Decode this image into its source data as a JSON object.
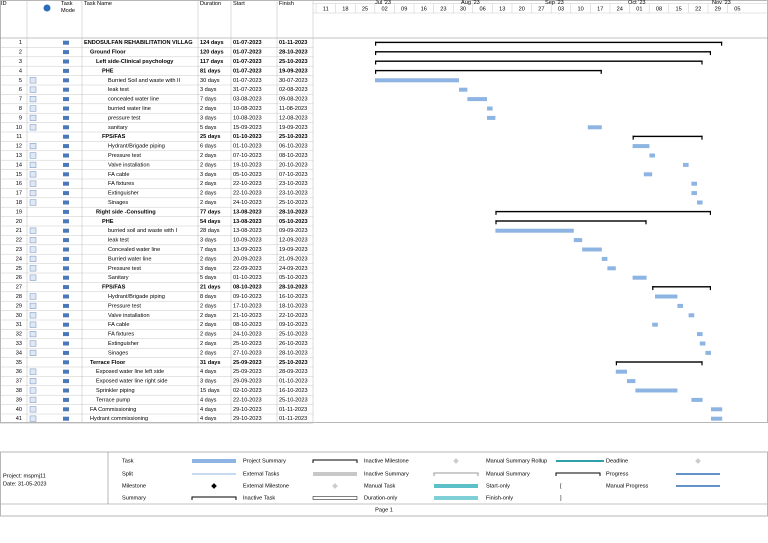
{
  "header": {
    "columns": [
      "ID",
      "Task\nMode",
      "Task Name",
      "Duration",
      "Start",
      "Finish"
    ]
  },
  "timeline": {
    "months": [
      "Jul '23",
      "Aug '23",
      "Sep '23",
      "Oct '23",
      "Nov '23"
    ],
    "weeks": [
      "11",
      "18",
      "25",
      "02",
      "09",
      "16",
      "23",
      "30",
      "06",
      "13",
      "20",
      "27",
      "03",
      "10",
      "17",
      "24",
      "01",
      "08",
      "15",
      "22",
      "29",
      "05"
    ]
  },
  "rows": [
    {
      "id": "1",
      "name": "ENDOSULFAN REHABILITATION VILLAG",
      "duration": "124 days",
      "start": "01-07-2023",
      "finish": "01-11-2023",
      "level": 0,
      "summary": true
    },
    {
      "id": "2",
      "name": "Ground Floor",
      "duration": "120 days",
      "start": "01-07-2023",
      "finish": "28-10-2023",
      "level": 1,
      "summary": true
    },
    {
      "id": "3",
      "name": "Left side-Clinical psychology",
      "duration": "117 days",
      "start": "01-07-2023",
      "finish": "25-10-2023",
      "level": 2,
      "summary": true
    },
    {
      "id": "4",
      "name": "PHE",
      "duration": "81 days",
      "start": "01-07-2023",
      "finish": "19-09-2023",
      "level": 3,
      "summary": true
    },
    {
      "id": "5",
      "name": "Burried Soil and waste with II",
      "duration": "30 days",
      "start": "01-07-2023",
      "finish": "30-07-2023",
      "level": 4,
      "summary": false
    },
    {
      "id": "6",
      "name": "leak test",
      "duration": "3 days",
      "start": "31-07-2023",
      "finish": "02-08-2023",
      "level": 4,
      "summary": false
    },
    {
      "id": "7",
      "name": "concealed water line",
      "duration": "7 days",
      "start": "03-08-2023",
      "finish": "09-08-2023",
      "level": 4,
      "summary": false
    },
    {
      "id": "8",
      "name": "burried water line",
      "duration": "2 days",
      "start": "10-08-2023",
      "finish": "11-08-2023",
      "level": 4,
      "summary": false
    },
    {
      "id": "9",
      "name": "pressure test",
      "duration": "3 days",
      "start": "10-08-2023",
      "finish": "12-08-2023",
      "level": 4,
      "summary": false
    },
    {
      "id": "10",
      "name": "sanitary",
      "duration": "5 days",
      "start": "15-09-2023",
      "finish": "19-09-2023",
      "level": 4,
      "summary": false
    },
    {
      "id": "11",
      "name": "FPS/FAS",
      "duration": "25 days",
      "start": "01-10-2023",
      "finish": "25-10-2023",
      "level": 3,
      "summary": true
    },
    {
      "id": "12",
      "name": "Hydrant/Brigade piping",
      "duration": "6 days",
      "start": "01-10-2023",
      "finish": "06-10-2023",
      "level": 4,
      "summary": false
    },
    {
      "id": "13",
      "name": "Pressure test",
      "duration": "2 days",
      "start": "07-10-2023",
      "finish": "08-10-2023",
      "level": 4,
      "summary": false
    },
    {
      "id": "14",
      "name": "Valve installation",
      "duration": "2 days",
      "start": "19-10-2023",
      "finish": "20-10-2023",
      "level": 4,
      "summary": false
    },
    {
      "id": "15",
      "name": "FA cable",
      "duration": "3 days",
      "start": "05-10-2023",
      "finish": "07-10-2023",
      "level": 4,
      "summary": false
    },
    {
      "id": "16",
      "name": "FA fixtures",
      "duration": "2 days",
      "start": "22-10-2023",
      "finish": "23-10-2023",
      "level": 4,
      "summary": false
    },
    {
      "id": "17",
      "name": "Extinguisher",
      "duration": "2 days",
      "start": "22-10-2023",
      "finish": "23-10-2023",
      "level": 4,
      "summary": false
    },
    {
      "id": "18",
      "name": "Sinages",
      "duration": "2 days",
      "start": "24-10-2023",
      "finish": "25-10-2023",
      "level": 4,
      "summary": false
    },
    {
      "id": "19",
      "name": "Right side -Consulting",
      "duration": "77 days",
      "start": "13-08-2023",
      "finish": "28-10-2023",
      "level": 2,
      "summary": true
    },
    {
      "id": "20",
      "name": "PHE",
      "duration": "54 days",
      "start": "13-08-2023",
      "finish": "05-10-2023",
      "level": 3,
      "summary": true
    },
    {
      "id": "21",
      "name": "burried soil and waste with I",
      "duration": "28 days",
      "start": "13-08-2023",
      "finish": "09-09-2023",
      "level": 4,
      "summary": false
    },
    {
      "id": "22",
      "name": "leak test",
      "duration": "3 days",
      "start": "10-09-2023",
      "finish": "12-09-2023",
      "level": 4,
      "summary": false
    },
    {
      "id": "23",
      "name": "Concealed water line",
      "duration": "7 days",
      "start": "13-09-2023",
      "finish": "19-09-2023",
      "level": 4,
      "summary": false
    },
    {
      "id": "24",
      "name": "Burried water line",
      "duration": "2 days",
      "start": "20-09-2023",
      "finish": "21-09-2023",
      "level": 4,
      "summary": false
    },
    {
      "id": "25",
      "name": "Pressure test",
      "duration": "3 days",
      "start": "22-09-2023",
      "finish": "24-09-2023",
      "level": 4,
      "summary": false
    },
    {
      "id": "26",
      "name": "Sanitary",
      "duration": "5 days",
      "start": "01-10-2023",
      "finish": "05-10-2023",
      "level": 4,
      "summary": false
    },
    {
      "id": "27",
      "name": "FPS/FAS",
      "duration": "21 days",
      "start": "08-10-2023",
      "finish": "28-10-2023",
      "level": 3,
      "summary": true
    },
    {
      "id": "28",
      "name": "Hydrant/Brigade piping",
      "duration": "8 days",
      "start": "09-10-2023",
      "finish": "16-10-2023",
      "level": 4,
      "summary": false
    },
    {
      "id": "29",
      "name": "Pressure test",
      "duration": "2 days",
      "start": "17-10-2023",
      "finish": "18-10-2023",
      "level": 4,
      "summary": false
    },
    {
      "id": "30",
      "name": "Valve installation",
      "duration": "2 days",
      "start": "21-10-2023",
      "finish": "22-10-2023",
      "level": 4,
      "summary": false
    },
    {
      "id": "31",
      "name": "FA cable",
      "duration": "2 days",
      "start": "08-10-2023",
      "finish": "09-10-2023",
      "level": 4,
      "summary": false
    },
    {
      "id": "32",
      "name": "FA fixtures",
      "duration": "2 days",
      "start": "24-10-2023",
      "finish": "25-10-2023",
      "level": 4,
      "summary": false
    },
    {
      "id": "33",
      "name": "Extinguisher",
      "duration": "2 days",
      "start": "25-10-2023",
      "finish": "26-10-2023",
      "level": 4,
      "summary": false
    },
    {
      "id": "34",
      "name": "Sinages",
      "duration": "2 days",
      "start": "27-10-2023",
      "finish": "28-10-2023",
      "level": 4,
      "summary": false
    },
    {
      "id": "35",
      "name": "Terrace Floor",
      "duration": "31 days",
      "start": "25-09-2023",
      "finish": "25-10-2023",
      "level": 1,
      "summary": true
    },
    {
      "id": "36",
      "name": "Exposed water line left side",
      "duration": "4 days",
      "start": "25-09-2023",
      "finish": "28-09-2023",
      "level": 2,
      "summary": false
    },
    {
      "id": "37",
      "name": "Exposed water line right side",
      "duration": "3 days",
      "start": "29-09-2023",
      "finish": "01-10-2023",
      "level": 2,
      "summary": false
    },
    {
      "id": "38",
      "name": "Sprinkler piping",
      "duration": "15 days",
      "start": "02-10-2023",
      "finish": "16-10-2023",
      "level": 2,
      "summary": false
    },
    {
      "id": "39",
      "name": "Terrace pump",
      "duration": "4 days",
      "start": "22-10-2023",
      "finish": "25-10-2023",
      "level": 2,
      "summary": false
    },
    {
      "id": "40",
      "name": "FA Commissioning",
      "duration": "4 days",
      "start": "29-10-2023",
      "finish": "01-11-2023",
      "level": 1,
      "summary": false
    },
    {
      "id": "41",
      "name": "Hydrant commissioning",
      "duration": "4 days",
      "start": "29-10-2023",
      "finish": "01-11-2023",
      "level": 1,
      "summary": false
    }
  ],
  "legend": {
    "items": [
      "Task",
      "Split",
      "Milestone",
      "Summary",
      "Project Summary",
      "External Tasks",
      "External Milestone",
      "Inactive Task",
      "Inactive Milestone",
      "Inactive Summary",
      "Manual Task",
      "Duration-only",
      "Manual Summary Rollup",
      "Manual Summary",
      "Start-only",
      "Finish-only",
      "Deadline",
      "Progress",
      "Manual Progress"
    ]
  },
  "footer": {
    "project": "Project: mspmj11",
    "date": "Date: 31-05-2023",
    "page": "Page 1"
  }
}
